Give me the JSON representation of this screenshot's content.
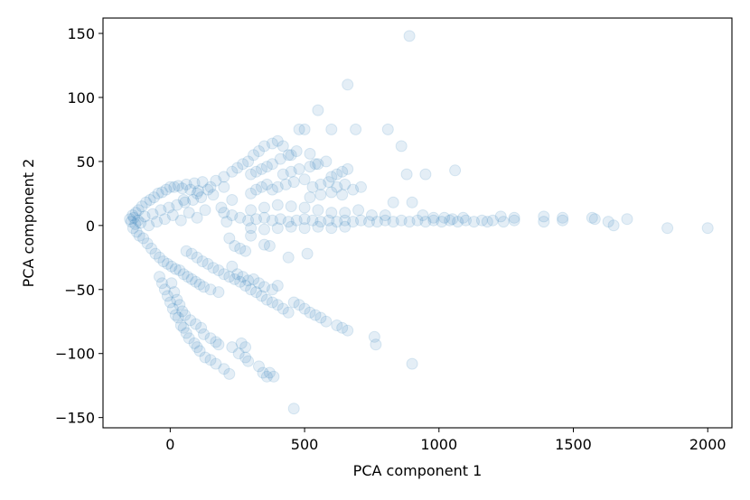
{
  "chart_data": {
    "type": "scatter",
    "xlabel": "PCA component 1",
    "ylabel": "PCA component 2",
    "xlim": [
      -250,
      2090
    ],
    "ylim": [
      -158,
      162
    ],
    "xticks": [
      0,
      500,
      1000,
      1500,
      2000
    ],
    "xtick_labels": [
      "0",
      "500",
      "1000",
      "1500",
      "2000"
    ],
    "yticks": [
      -150,
      -100,
      -50,
      0,
      50,
      100,
      150
    ],
    "ytick_labels": [
      "−150",
      "−100",
      "−50",
      "0",
      "50",
      "100",
      "150"
    ],
    "grid": false,
    "legend": "none",
    "marker_color": "#1f77b4",
    "marker_alpha": 0.12,
    "points": [
      [
        -150,
        5
      ],
      [
        -145,
        3
      ],
      [
        -140,
        8
      ],
      [
        -138,
        -2
      ],
      [
        -135,
        6
      ],
      [
        -130,
        1
      ],
      [
        -128,
        10
      ],
      [
        -125,
        -5
      ],
      [
        -120,
        4
      ],
      [
        -118,
        12
      ],
      [
        -115,
        -8
      ],
      [
        -110,
        2
      ],
      [
        -105,
        15
      ],
      [
        -100,
        -10
      ],
      [
        -95,
        7
      ],
      [
        -90,
        18
      ],
      [
        -85,
        -14
      ],
      [
        -80,
        0
      ],
      [
        -75,
        20
      ],
      [
        -70,
        -18
      ],
      [
        -65,
        9
      ],
      [
        -60,
        22
      ],
      [
        -55,
        -22
      ],
      [
        -50,
        3
      ],
      [
        -45,
        25
      ],
      [
        -40,
        -25
      ],
      [
        -35,
        12
      ],
      [
        -30,
        26
      ],
      [
        -25,
        -28
      ],
      [
        -20,
        5
      ],
      [
        -15,
        28
      ],
      [
        -10,
        -30
      ],
      [
        -5,
        14
      ],
      [
        0,
        30
      ],
      [
        5,
        -32
      ],
      [
        10,
        8
      ],
      [
        15,
        30
      ],
      [
        20,
        -34
      ],
      [
        25,
        16
      ],
      [
        30,
        31
      ],
      [
        35,
        -35
      ],
      [
        40,
        4
      ],
      [
        45,
        29
      ],
      [
        50,
        -38
      ],
      [
        55,
        18
      ],
      [
        60,
        32
      ],
      [
        65,
        -40
      ],
      [
        70,
        10
      ],
      [
        75,
        28
      ],
      [
        80,
        -42
      ],
      [
        85,
        20
      ],
      [
        90,
        33
      ],
      [
        95,
        -44
      ],
      [
        100,
        6
      ],
      [
        105,
        27
      ],
      [
        110,
        -46
      ],
      [
        115,
        22
      ],
      [
        120,
        34
      ],
      [
        125,
        -48
      ],
      [
        130,
        12
      ],
      [
        140,
        28
      ],
      [
        150,
        -50
      ],
      [
        160,
        24
      ],
      [
        170,
        35
      ],
      [
        180,
        -52
      ],
      [
        190,
        14
      ],
      [
        200,
        30
      ],
      [
        210,
        3
      ],
      [
        220,
        -10
      ],
      [
        230,
        20
      ],
      [
        -40,
        -40
      ],
      [
        -30,
        -45
      ],
      [
        -20,
        -50
      ],
      [
        -10,
        -55
      ],
      [
        0,
        -60
      ],
      [
        10,
        -65
      ],
      [
        20,
        -70
      ],
      [
        30,
        -72
      ],
      [
        40,
        -78
      ],
      [
        50,
        -80
      ],
      [
        60,
        -84
      ],
      [
        70,
        -88
      ],
      [
        90,
        -92
      ],
      [
        100,
        -95
      ],
      [
        110,
        -98
      ],
      [
        130,
        -103
      ],
      [
        150,
        -105
      ],
      [
        170,
        -108
      ],
      [
        200,
        -112
      ],
      [
        220,
        -116
      ],
      [
        5,
        -45
      ],
      [
        15,
        -52
      ],
      [
        25,
        -58
      ],
      [
        35,
        -62
      ],
      [
        45,
        -67
      ],
      [
        55,
        -70
      ],
      [
        75,
        -74
      ],
      [
        95,
        -77
      ],
      [
        115,
        -80
      ],
      [
        125,
        -85
      ],
      [
        150,
        -88
      ],
      [
        170,
        -91
      ],
      [
        180,
        -93
      ],
      [
        230,
        -95
      ],
      [
        255,
        -100
      ],
      [
        280,
        -103
      ],
      [
        290,
        -106
      ],
      [
        330,
        -110
      ],
      [
        345,
        -115
      ],
      [
        370,
        -115
      ],
      [
        360,
        -118
      ],
      [
        385,
        -118
      ],
      [
        460,
        -143
      ],
      [
        280,
        -95
      ],
      [
        265,
        -92
      ],
      [
        60,
        -20
      ],
      [
        80,
        -22
      ],
      [
        100,
        -25
      ],
      [
        120,
        -28
      ],
      [
        140,
        -30
      ],
      [
        160,
        -33
      ],
      [
        180,
        -35
      ],
      [
        200,
        -38
      ],
      [
        220,
        -40
      ],
      [
        240,
        -42
      ],
      [
        260,
        -44
      ],
      [
        280,
        -47
      ],
      [
        300,
        -50
      ],
      [
        320,
        -52
      ],
      [
        340,
        -55
      ],
      [
        360,
        -58
      ],
      [
        380,
        -60
      ],
      [
        400,
        -62
      ],
      [
        420,
        -65
      ],
      [
        440,
        -68
      ],
      [
        460,
        -60
      ],
      [
        480,
        -62
      ],
      [
        500,
        -65
      ],
      [
        520,
        -68
      ],
      [
        540,
        -70
      ],
      [
        560,
        -72
      ],
      [
        580,
        -75
      ],
      [
        620,
        -78
      ],
      [
        640,
        -80
      ],
      [
        660,
        -82
      ],
      [
        380,
        -50
      ],
      [
        400,
        -47
      ],
      [
        310,
        -42
      ],
      [
        330,
        -45
      ],
      [
        350,
        -48
      ],
      [
        250,
        -38
      ],
      [
        230,
        -32
      ],
      [
        270,
        -40
      ],
      [
        290,
        -43
      ],
      [
        240,
        -16
      ],
      [
        260,
        -18
      ],
      [
        280,
        -20
      ],
      [
        350,
        -15
      ],
      [
        370,
        -16
      ],
      [
        300,
        -8
      ],
      [
        760,
        -87
      ],
      [
        765,
        -93
      ],
      [
        900,
        -108
      ],
      [
        510,
        -22
      ],
      [
        440,
        -25
      ],
      [
        50,
        20
      ],
      [
        100,
        25
      ],
      [
        150,
        30
      ],
      [
        200,
        38
      ],
      [
        230,
        42
      ],
      [
        250,
        45
      ],
      [
        270,
        48
      ],
      [
        290,
        50
      ],
      [
        310,
        55
      ],
      [
        330,
        58
      ],
      [
        350,
        62
      ],
      [
        380,
        64
      ],
      [
        400,
        66
      ],
      [
        420,
        62
      ],
      [
        300,
        40
      ],
      [
        320,
        42
      ],
      [
        340,
        44
      ],
      [
        360,
        46
      ],
      [
        380,
        48
      ],
      [
        410,
        52
      ],
      [
        440,
        55
      ],
      [
        470,
        58
      ],
      [
        420,
        40
      ],
      [
        450,
        42
      ],
      [
        480,
        44
      ],
      [
        520,
        46
      ],
      [
        550,
        48
      ],
      [
        580,
        50
      ],
      [
        600,
        38
      ],
      [
        620,
        40
      ],
      [
        640,
        42
      ],
      [
        660,
        44
      ],
      [
        300,
        25
      ],
      [
        320,
        28
      ],
      [
        340,
        30
      ],
      [
        360,
        32
      ],
      [
        380,
        28
      ],
      [
        400,
        30
      ],
      [
        430,
        32
      ],
      [
        460,
        34
      ],
      [
        500,
        36
      ],
      [
        530,
        30
      ],
      [
        560,
        32
      ],
      [
        590,
        34
      ],
      [
        620,
        30
      ],
      [
        650,
        32
      ],
      [
        680,
        28
      ],
      [
        710,
        30
      ],
      [
        520,
        22
      ],
      [
        560,
        24
      ],
      [
        600,
        26
      ],
      [
        640,
        24
      ],
      [
        500,
        75
      ],
      [
        550,
        90
      ],
      [
        600,
        75
      ],
      [
        660,
        110
      ],
      [
        690,
        75
      ],
      [
        810,
        75
      ],
      [
        860,
        62
      ],
      [
        880,
        40
      ],
      [
        950,
        40
      ],
      [
        1060,
        43
      ],
      [
        890,
        148
      ],
      [
        480,
        75
      ],
      [
        450,
        55
      ],
      [
        520,
        56
      ],
      [
        540,
        48
      ],
      [
        200,
        10
      ],
      [
        230,
        8
      ],
      [
        260,
        6
      ],
      [
        290,
        4
      ],
      [
        320,
        5
      ],
      [
        350,
        6
      ],
      [
        380,
        4
      ],
      [
        410,
        5
      ],
      [
        440,
        3
      ],
      [
        470,
        4
      ],
      [
        500,
        5
      ],
      [
        530,
        4
      ],
      [
        560,
        3
      ],
      [
        590,
        4
      ],
      [
        620,
        3
      ],
      [
        650,
        4
      ],
      [
        680,
        3
      ],
      [
        710,
        4
      ],
      [
        740,
        3
      ],
      [
        770,
        3
      ],
      [
        800,
        4
      ],
      [
        830,
        3
      ],
      [
        860,
        4
      ],
      [
        890,
        3
      ],
      [
        920,
        4
      ],
      [
        950,
        3
      ],
      [
        980,
        4
      ],
      [
        1010,
        3
      ],
      [
        1040,
        4
      ],
      [
        1070,
        3
      ],
      [
        1100,
        4
      ],
      [
        1130,
        3
      ],
      [
        1160,
        4
      ],
      [
        1200,
        4
      ],
      [
        1240,
        3
      ],
      [
        1280,
        4
      ],
      [
        1390,
        3
      ],
      [
        1460,
        4
      ],
      [
        1580,
        5
      ],
      [
        1630,
        3
      ],
      [
        1700,
        5
      ],
      [
        1850,
        -2
      ],
      [
        2000,
        -2
      ],
      [
        1390,
        7
      ],
      [
        1460,
        6
      ],
      [
        1570,
        6
      ],
      [
        1650,
        0
      ],
      [
        1230,
        7
      ],
      [
        1280,
        6
      ],
      [
        1180,
        3
      ],
      [
        300,
        12
      ],
      [
        350,
        14
      ],
      [
        400,
        16
      ],
      [
        450,
        15
      ],
      [
        500,
        14
      ],
      [
        550,
        12
      ],
      [
        600,
        10
      ],
      [
        650,
        10
      ],
      [
        700,
        12
      ],
      [
        750,
        8
      ],
      [
        800,
        8
      ],
      [
        830,
        18
      ],
      [
        900,
        18
      ],
      [
        940,
        8
      ],
      [
        980,
        6
      ],
      [
        1020,
        6
      ],
      [
        1050,
        5
      ],
      [
        1090,
        6
      ],
      [
        300,
        -2
      ],
      [
        350,
        -3
      ],
      [
        400,
        -2
      ],
      [
        450,
        -1
      ],
      [
        500,
        -2
      ],
      [
        550,
        -1
      ],
      [
        600,
        -2
      ],
      [
        650,
        -1
      ]
    ]
  }
}
